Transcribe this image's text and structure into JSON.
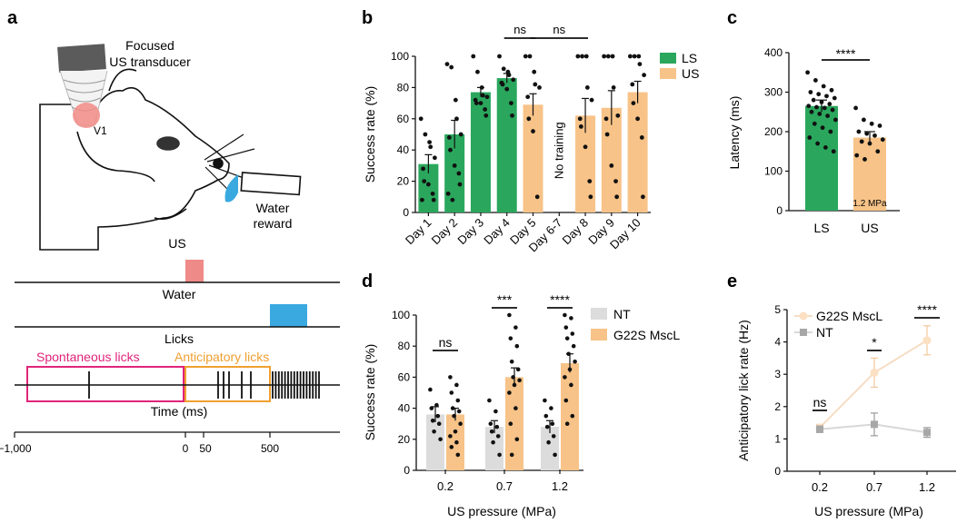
{
  "panels": {
    "a": {
      "label": "a",
      "transducer_label": [
        "Focused",
        "US transducer"
      ],
      "region_label": "V1",
      "reward_label": [
        "Water",
        "reward"
      ],
      "stim_label": "US",
      "water_label": "Water",
      "licks_label": "Licks",
      "spont_label": "Spontaneous licks",
      "antic_label": "Anticipatory licks",
      "time_label": "Time (ms)",
      "time_ticks": [
        "−1,000",
        "0",
        "50",
        "500"
      ]
    },
    "b": {
      "label": "b"
    },
    "c": {
      "label": "c"
    },
    "d": {
      "label": "d"
    },
    "e": {
      "label": "e"
    }
  },
  "colors": {
    "green": "#2aa75d",
    "orange": "#f7c388",
    "orange_dark": "#f0a04b",
    "gray_bar": "#dcdcdc",
    "gray_marker": "#a7a7a7",
    "peach_marker": "#fbe0c2",
    "pink": "#e0247a",
    "stim": "#ee8a88",
    "water": "#3aa9e0",
    "antic": "#f0a030"
  },
  "chart_data": [
    {
      "id": "b",
      "type": "bar",
      "title": "",
      "ylabel": "Success rate (%)",
      "xlabel": "",
      "ylim": [
        0,
        100
      ],
      "yticks": [
        0,
        20,
        40,
        60,
        80,
        100
      ],
      "categories": [
        "Day 1",
        "Day 2",
        "Day 3",
        "Day 4",
        "Day 5",
        "Day 6-7",
        "Day 8",
        "Day 9",
        "Day 10"
      ],
      "groups": [
        "LS",
        "LS",
        "LS",
        "LS",
        "US",
        "none",
        "US",
        "US",
        "US"
      ],
      "values": [
        31,
        50,
        77,
        86,
        69,
        null,
        62,
        67,
        77
      ],
      "errors": [
        6,
        9,
        3,
        3,
        7,
        null,
        11,
        11,
        7
      ],
      "points": [
        [
          60,
          50,
          45,
          42,
          35,
          28,
          20,
          18,
          12,
          8,
          8
        ],
        [
          95,
          93,
          72,
          60,
          50,
          48,
          40,
          30,
          25,
          18,
          12,
          8
        ],
        [
          100,
          90,
          80,
          75,
          74,
          72,
          70,
          70,
          66,
          62
        ],
        [
          100,
          92,
          90,
          88,
          85,
          83,
          82,
          79,
          70,
          62
        ],
        [
          100,
          100,
          90,
          82,
          80,
          74,
          60,
          52,
          10
        ],
        [],
        [
          100,
          100,
          100,
          80,
          72,
          60,
          55,
          42,
          20,
          10
        ],
        [
          100,
          100,
          100,
          80,
          62,
          60,
          50,
          30,
          20,
          10
        ],
        [
          100,
          100,
          100,
          95,
          88,
          82,
          70,
          60,
          48,
          10
        ]
      ],
      "legend": [
        {
          "name": "LS",
          "group": "LS"
        },
        {
          "name": "US",
          "group": "US"
        }
      ],
      "gap_annotation": "No training",
      "significance": [
        {
          "from": 3,
          "to": 4,
          "label": "ns"
        },
        {
          "from": 4,
          "to": 6,
          "label": "ns"
        }
      ]
    },
    {
      "id": "c",
      "type": "bar",
      "title": "",
      "ylabel": "Latency (ms)",
      "ylim": [
        0,
        400
      ],
      "yticks": [
        0,
        100,
        200,
        300,
        400
      ],
      "categories": [
        "LS",
        "US"
      ],
      "values": [
        265,
        185
      ],
      "errors": [
        15,
        15
      ],
      "points": [
        [
          350,
          330,
          315,
          305,
          300,
          295,
          290,
          285,
          280,
          275,
          270,
          265,
          262,
          260,
          255,
          250,
          245,
          240,
          230,
          220,
          210,
          200,
          185,
          170,
          160,
          150
        ],
        [
          260,
          230,
          220,
          215,
          200,
          195,
          190,
          180,
          175,
          170,
          150,
          140,
          130
        ]
      ],
      "bar_annotation": "1.2 MPa",
      "significance": [
        {
          "from": 0,
          "to": 1,
          "label": "****"
        }
      ]
    },
    {
      "id": "d",
      "type": "bar",
      "title": "",
      "xlabel": "US pressure (MPa)",
      "ylabel": "Success rate (%)",
      "ylim": [
        0,
        100
      ],
      "yticks": [
        0,
        20,
        40,
        60,
        80,
        100
      ],
      "categories": [
        "0.2",
        "0.7",
        "1.2"
      ],
      "series": [
        {
          "name": "NT",
          "values": [
            36,
            28,
            28
          ],
          "errors": [
            5,
            4,
            4
          ],
          "points": [
            [
              52,
              42,
              40,
              35,
              32,
              30,
              25,
              20
            ],
            [
              45,
              38,
              30,
              28,
              25,
              22,
              18,
              10
            ],
            [
              45,
              40,
              35,
              30,
              28,
              22,
              18,
              10
            ]
          ]
        },
        {
          "name": "G22S MscL",
          "values": [
            36,
            60,
            69
          ],
          "errors": [
            4,
            6,
            6
          ],
          "points": [
            [
              60,
              55,
              50,
              45,
              40,
              38,
              35,
              30,
              25,
              22,
              18,
              15,
              10
            ],
            [
              100,
              92,
              85,
              80,
              70,
              65,
              60,
              58,
              55,
              50,
              40,
              30,
              20,
              10
            ],
            [
              100,
              98,
              92,
              88,
              85,
              80,
              75,
              70,
              65,
              60,
              55,
              45,
              35,
              30
            ]
          ]
        }
      ],
      "significance": [
        {
          "category": 0,
          "label": "ns"
        },
        {
          "category": 1,
          "label": "***"
        },
        {
          "category": 2,
          "label": "****"
        }
      ]
    },
    {
      "id": "e",
      "type": "line",
      "title": "",
      "xlabel": "US pressure (MPa)",
      "ylabel": "Anticipatory lick rate (Hz)",
      "ylim": [
        0,
        5
      ],
      "yticks": [
        0,
        1,
        2,
        3,
        4,
        5
      ],
      "x": [
        "0.2",
        "0.7",
        "1.2"
      ],
      "series": [
        {
          "name": "G22S MscL",
          "values": [
            1.35,
            3.05,
            4.05
          ],
          "errors": [
            0.1,
            0.45,
            0.45
          ]
        },
        {
          "name": "NT",
          "values": [
            1.3,
            1.45,
            1.2
          ],
          "errors": [
            0.1,
            0.35,
            0.15
          ]
        }
      ],
      "significance": [
        {
          "category": 0,
          "label": "ns"
        },
        {
          "category": 1,
          "label": "*"
        },
        {
          "category": 2,
          "label": "****"
        }
      ]
    }
  ]
}
